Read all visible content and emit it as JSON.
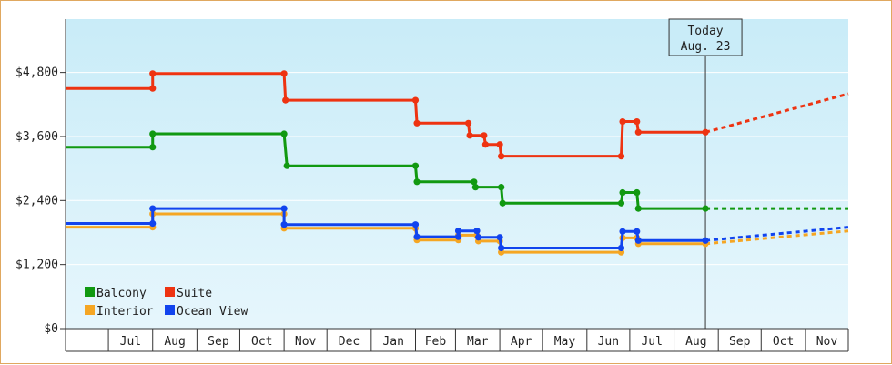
{
  "chart_data": {
    "type": "line",
    "title": "",
    "xlabel": "",
    "ylabel": "",
    "ylim": [
      0,
      5800
    ],
    "yticks": [
      {
        "value": 0,
        "label": "$0"
      },
      {
        "value": 1200,
        "label": "$1,200"
      },
      {
        "value": 2400,
        "label": "$2,400"
      },
      {
        "value": 3600,
        "label": "$3,600"
      },
      {
        "value": 4800,
        "label": "$4,800"
      }
    ],
    "xlim": [
      "2022-06-01",
      "2023-12-01"
    ],
    "months": [
      {
        "label": "Jul",
        "start": "2022-07-01",
        "end": "2022-08-01"
      },
      {
        "label": "Aug",
        "start": "2022-08-01",
        "end": "2022-09-01"
      },
      {
        "label": "Sep",
        "start": "2022-09-01",
        "end": "2022-10-01"
      },
      {
        "label": "Oct",
        "start": "2022-10-01",
        "end": "2022-11-01"
      },
      {
        "label": "Nov",
        "start": "2022-11-01",
        "end": "2022-12-01"
      },
      {
        "label": "Dec",
        "start": "2022-12-01",
        "end": "2023-01-01"
      },
      {
        "label": "Jan",
        "start": "2023-01-01",
        "end": "2023-02-01"
      },
      {
        "label": "Feb",
        "start": "2023-02-01",
        "end": "2023-03-01"
      },
      {
        "label": "Mar",
        "start": "2023-03-01",
        "end": "2023-04-01"
      },
      {
        "label": "Apr",
        "start": "2023-04-01",
        "end": "2023-05-01"
      },
      {
        "label": "May",
        "start": "2023-05-01",
        "end": "2023-06-01"
      },
      {
        "label": "Jun",
        "start": "2023-06-01",
        "end": "2023-07-01"
      },
      {
        "label": "Jul",
        "start": "2023-07-01",
        "end": "2023-08-01"
      },
      {
        "label": "Aug",
        "start": "2023-08-01",
        "end": "2023-09-01"
      },
      {
        "label": "Sep",
        "start": "2023-09-01",
        "end": "2023-10-01"
      },
      {
        "label": "Oct",
        "start": "2023-10-01",
        "end": "2023-11-01"
      },
      {
        "label": "Nov",
        "start": "2023-11-01",
        "end": "2023-12-01"
      }
    ],
    "today": {
      "date": "2023-08-23",
      "line1": "Today",
      "line2": "Aug. 23"
    },
    "legend_position": "bottom-left",
    "series": [
      {
        "name": "Balcony",
        "color": "#119911",
        "points": [
          {
            "date": "2022-06-01",
            "value": 3400
          },
          {
            "date": "2022-08-01",
            "value": 3400
          },
          {
            "date": "2022-08-01",
            "value": 3650
          },
          {
            "date": "2022-11-01",
            "value": 3650
          },
          {
            "date": "2022-11-03",
            "value": 3050
          },
          {
            "date": "2023-02-01",
            "value": 3050
          },
          {
            "date": "2023-02-02",
            "value": 2750
          },
          {
            "date": "2023-03-14",
            "value": 2750
          },
          {
            "date": "2023-03-15",
            "value": 2650
          },
          {
            "date": "2023-04-02",
            "value": 2650
          },
          {
            "date": "2023-04-03",
            "value": 2350
          },
          {
            "date": "2023-06-25",
            "value": 2350
          },
          {
            "date": "2023-06-26",
            "value": 2550
          },
          {
            "date": "2023-07-06",
            "value": 2550
          },
          {
            "date": "2023-07-07",
            "value": 2250
          },
          {
            "date": "2023-08-23",
            "value": 2250
          }
        ],
        "projection": [
          {
            "date": "2023-08-23",
            "value": 2250
          },
          {
            "date": "2023-12-01",
            "value": 2250
          }
        ]
      },
      {
        "name": "Suite",
        "color": "#ee3311",
        "points": [
          {
            "date": "2022-06-01",
            "value": 4500
          },
          {
            "date": "2022-08-01",
            "value": 4500
          },
          {
            "date": "2022-08-01",
            "value": 4780
          },
          {
            "date": "2022-11-01",
            "value": 4780
          },
          {
            "date": "2022-11-02",
            "value": 4280
          },
          {
            "date": "2023-02-01",
            "value": 4280
          },
          {
            "date": "2023-02-02",
            "value": 3850
          },
          {
            "date": "2023-03-10",
            "value": 3850
          },
          {
            "date": "2023-03-11",
            "value": 3620
          },
          {
            "date": "2023-03-21",
            "value": 3620
          },
          {
            "date": "2023-03-22",
            "value": 3450
          },
          {
            "date": "2023-04-01",
            "value": 3450
          },
          {
            "date": "2023-04-02",
            "value": 3230
          },
          {
            "date": "2023-06-25",
            "value": 3230
          },
          {
            "date": "2023-06-26",
            "value": 3880
          },
          {
            "date": "2023-07-06",
            "value": 3880
          },
          {
            "date": "2023-07-07",
            "value": 3680
          },
          {
            "date": "2023-08-23",
            "value": 3680
          }
        ],
        "projection": [
          {
            "date": "2023-08-23",
            "value": 3680
          },
          {
            "date": "2023-12-01",
            "value": 4400
          }
        ]
      },
      {
        "name": "Interior",
        "color": "#f5a623",
        "points": [
          {
            "date": "2022-06-01",
            "value": 1900
          },
          {
            "date": "2022-08-01",
            "value": 1900
          },
          {
            "date": "2022-08-01",
            "value": 2150
          },
          {
            "date": "2022-11-01",
            "value": 2150
          },
          {
            "date": "2022-11-01",
            "value": 1880
          },
          {
            "date": "2023-02-01",
            "value": 1880
          },
          {
            "date": "2023-02-02",
            "value": 1660
          },
          {
            "date": "2023-03-03",
            "value": 1660
          },
          {
            "date": "2023-03-03",
            "value": 1750
          },
          {
            "date": "2023-03-16",
            "value": 1750
          },
          {
            "date": "2023-03-17",
            "value": 1640
          },
          {
            "date": "2023-04-01",
            "value": 1640
          },
          {
            "date": "2023-04-02",
            "value": 1430
          },
          {
            "date": "2023-06-25",
            "value": 1430
          },
          {
            "date": "2023-06-26",
            "value": 1700
          },
          {
            "date": "2023-07-06",
            "value": 1700
          },
          {
            "date": "2023-07-07",
            "value": 1590
          },
          {
            "date": "2023-08-23",
            "value": 1590
          }
        ],
        "projection": [
          {
            "date": "2023-08-23",
            "value": 1590
          },
          {
            "date": "2023-12-01",
            "value": 1830
          }
        ]
      },
      {
        "name": "Ocean View",
        "color": "#1144ee",
        "points": [
          {
            "date": "2022-06-01",
            "value": 1970
          },
          {
            "date": "2022-08-01",
            "value": 1970
          },
          {
            "date": "2022-08-01",
            "value": 2250
          },
          {
            "date": "2022-11-01",
            "value": 2250
          },
          {
            "date": "2022-11-01",
            "value": 1950
          },
          {
            "date": "2023-02-01",
            "value": 1950
          },
          {
            "date": "2023-02-02",
            "value": 1720
          },
          {
            "date": "2023-03-03",
            "value": 1720
          },
          {
            "date": "2023-03-03",
            "value": 1830
          },
          {
            "date": "2023-03-16",
            "value": 1830
          },
          {
            "date": "2023-03-17",
            "value": 1710
          },
          {
            "date": "2023-04-01",
            "value": 1710
          },
          {
            "date": "2023-04-02",
            "value": 1510
          },
          {
            "date": "2023-06-25",
            "value": 1510
          },
          {
            "date": "2023-06-26",
            "value": 1820
          },
          {
            "date": "2023-07-06",
            "value": 1820
          },
          {
            "date": "2023-07-07",
            "value": 1650
          },
          {
            "date": "2023-08-23",
            "value": 1650
          }
        ],
        "projection": [
          {
            "date": "2023-08-23",
            "value": 1650
          },
          {
            "date": "2023-12-01",
            "value": 1900
          }
        ]
      }
    ]
  }
}
